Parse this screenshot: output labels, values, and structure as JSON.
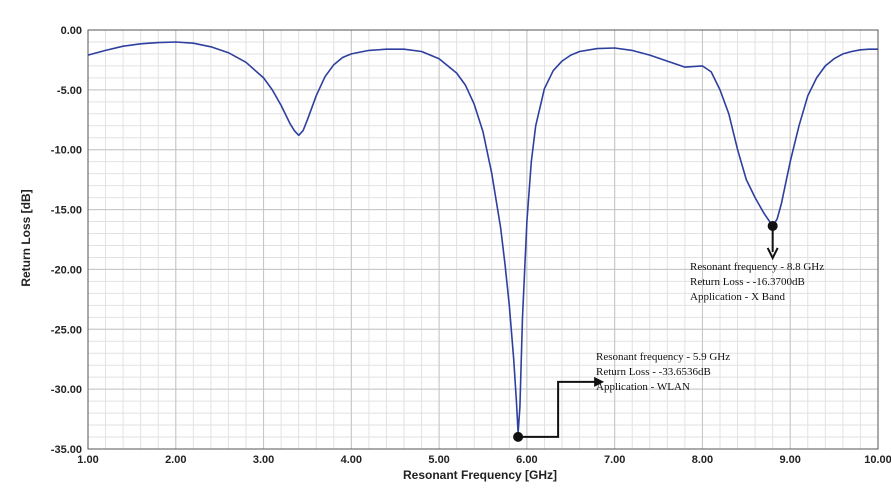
{
  "chart_data": {
    "type": "line",
    "title": "",
    "xlabel": "Resonant  Frequency [GHz]",
    "ylabel": "Return Loss [dB]",
    "xlim": [
      1.0,
      10.0
    ],
    "ylim": [
      -35.0,
      0.0
    ],
    "grid": true,
    "x_ticks": [
      "1.00",
      "2.00",
      "3.00",
      "4.00",
      "5.00",
      "6.00",
      "7.00",
      "8.00",
      "9.00",
      "10.00"
    ],
    "y_ticks": [
      "0.00",
      "-5.00",
      "-10.00",
      "-15.00",
      "-20.00",
      "-25.00",
      "-30.00",
      "-35.00"
    ],
    "series": [
      {
        "color": "#2e3f9e",
        "x": [
          1.0,
          1.2,
          1.4,
          1.6,
          1.8,
          2.0,
          2.2,
          2.4,
          2.6,
          2.8,
          3.0,
          3.1,
          3.2,
          3.3,
          3.35,
          3.4,
          3.45,
          3.5,
          3.6,
          3.7,
          3.8,
          3.9,
          4.0,
          4.2,
          4.4,
          4.6,
          4.8,
          5.0,
          5.2,
          5.3,
          5.4,
          5.5,
          5.6,
          5.7,
          5.75,
          5.8,
          5.85,
          5.88,
          5.9,
          5.92,
          5.95,
          6.0,
          6.05,
          6.1,
          6.2,
          6.3,
          6.4,
          6.5,
          6.6,
          6.8,
          7.0,
          7.2,
          7.4,
          7.6,
          7.8,
          8.0,
          8.1,
          8.2,
          8.3,
          8.4,
          8.5,
          8.6,
          8.7,
          8.8,
          8.85,
          8.9,
          9.0,
          9.1,
          9.2,
          9.3,
          9.4,
          9.5,
          9.6,
          9.7,
          9.8,
          9.9,
          10.0
        ],
        "y": [
          -2.1,
          -1.7,
          -1.35,
          -1.15,
          -1.05,
          -1.0,
          -1.1,
          -1.4,
          -1.9,
          -2.7,
          -4.0,
          -5.0,
          -6.3,
          -7.8,
          -8.4,
          -8.8,
          -8.4,
          -7.5,
          -5.5,
          -3.9,
          -2.9,
          -2.3,
          -2.0,
          -1.7,
          -1.6,
          -1.6,
          -1.8,
          -2.4,
          -3.6,
          -4.6,
          -6.2,
          -8.5,
          -12.0,
          -16.5,
          -19.5,
          -23.0,
          -27.5,
          -31.0,
          -33.65,
          -31.5,
          -24.0,
          -16.0,
          -11.0,
          -8.0,
          -4.9,
          -3.4,
          -2.6,
          -2.1,
          -1.8,
          -1.55,
          -1.5,
          -1.7,
          -2.1,
          -2.6,
          -3.1,
          -3.0,
          -3.5,
          -5.0,
          -7.0,
          -10.0,
          -12.5,
          -14.0,
          -15.3,
          -16.37,
          -15.8,
          -14.5,
          -11.0,
          -8.0,
          -5.5,
          -4.0,
          -3.0,
          -2.4,
          -2.0,
          -1.8,
          -1.65,
          -1.6,
          -1.6
        ]
      }
    ],
    "annotations": [
      {
        "x": 5.9,
        "y": -33.6536,
        "lines": [
          "Resonant frequency - 5.9 GHz",
          "Return Loss - -33.6536dB",
          "Application - WLAN"
        ]
      },
      {
        "x": 8.8,
        "y": -16.37,
        "lines": [
          "Resonant frequency - 8.8 GHz",
          "Return Loss - -16.3700dB",
          "Application - X Band"
        ]
      }
    ]
  }
}
